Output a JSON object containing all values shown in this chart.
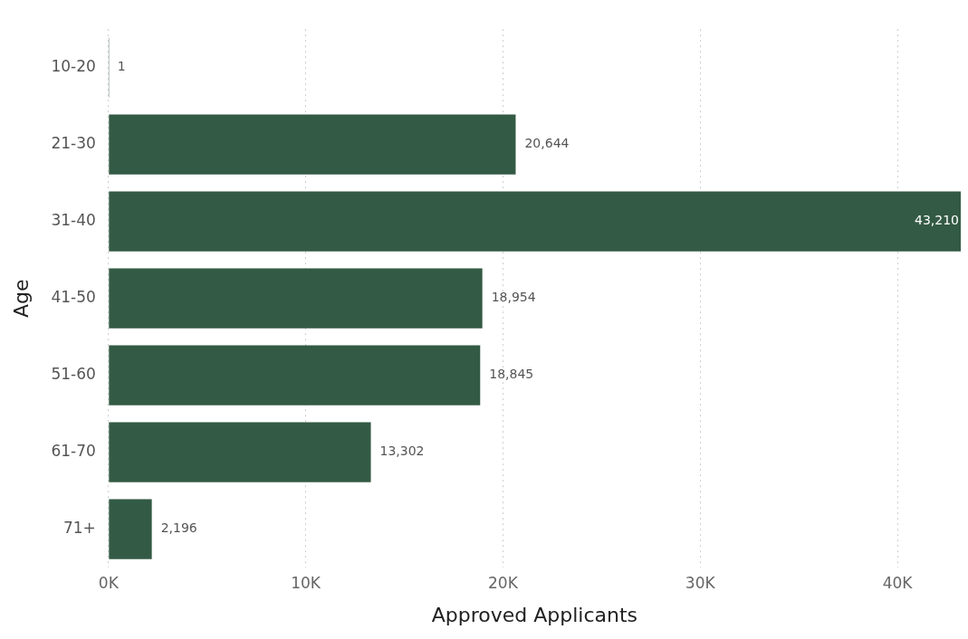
{
  "chart_data": {
    "type": "bar",
    "orientation": "horizontal",
    "xlabel": "Approved Applicants",
    "ylabel": "Age",
    "categories": [
      "10-20",
      "21-30",
      "31-40",
      "41-50",
      "51-60",
      "61-70",
      "71+"
    ],
    "values": [
      1,
      20644,
      43210,
      18954,
      18845,
      13302,
      2196
    ],
    "color": "#335a44",
    "xlim": [
      0,
      43210
    ],
    "xticks": [
      {
        "value": 0,
        "label": "0K"
      },
      {
        "value": 10000,
        "label": "10K"
      },
      {
        "value": 20000,
        "label": "20K"
      },
      {
        "value": 30000,
        "label": "30K"
      },
      {
        "value": 40000,
        "label": "40K"
      }
    ],
    "value_labels": [
      "1",
      "20,644",
      "43,210",
      "18,954",
      "18,845",
      "13,302",
      "2,196"
    ],
    "grid": "x",
    "legend": false
  }
}
